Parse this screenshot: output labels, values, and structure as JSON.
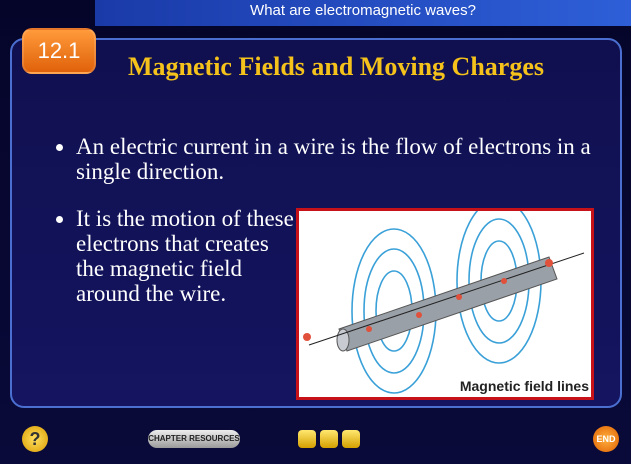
{
  "header": {
    "title": "What are electromagnetic waves?"
  },
  "badge": "12.1",
  "slide": {
    "title": "Magnetic Fields and Moving Charges",
    "bullets": [
      "An electric current in a wire is the flow of electrons in a single direction.",
      "It is the motion of these electrons that creates the magnetic field around the wire."
    ]
  },
  "figure": {
    "caption": "Magnetic field lines"
  },
  "footer": {
    "help": "?",
    "chapter_resources": "CHAPTER RESOURCES",
    "end": "END"
  }
}
